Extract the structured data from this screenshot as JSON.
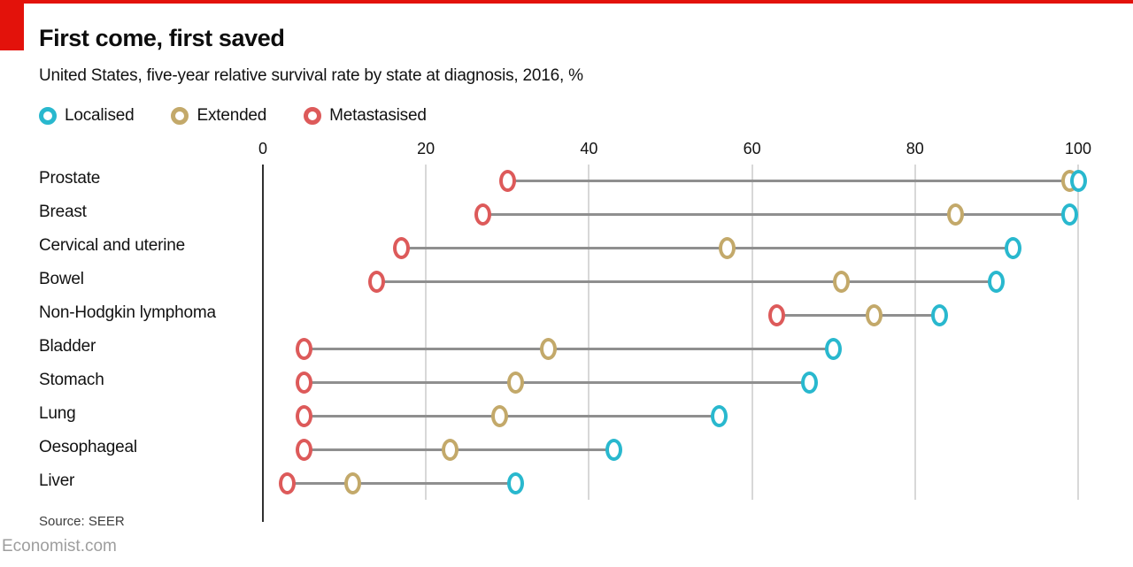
{
  "header": {
    "title": "First come, first saved",
    "subtitle": "United States, five-year relative survival rate by state at diagnosis, 2016, %"
  },
  "legend": [
    {
      "label": "Localised",
      "color": "#29b8ce"
    },
    {
      "label": "Extended",
      "color": "#c3a96a"
    },
    {
      "label": "Metastasised",
      "color": "#dd5a5a"
    }
  ],
  "chart_data": {
    "type": "scatter",
    "subtype": "dot-plot-dumbbell",
    "title": "First come, first saved",
    "subtitle": "United States, five-year relative survival rate by state at diagnosis, 2016, %",
    "categories": [
      "Prostate",
      "Breast",
      "Cervical and uterine",
      "Bowel",
      "Non-Hodgkin lymphoma",
      "Bladder",
      "Stomach",
      "Lung",
      "Oesophageal",
      "Liver"
    ],
    "series": [
      {
        "name": "Localised",
        "color": "#29b8ce",
        "values": [
          100,
          99,
          92,
          90,
          83,
          70,
          67,
          56,
          43,
          31
        ]
      },
      {
        "name": "Extended",
        "color": "#c3a96a",
        "values": [
          99,
          85,
          57,
          71,
          75,
          35,
          31,
          29,
          23,
          11
        ]
      },
      {
        "name": "Metastasised",
        "color": "#dd5a5a",
        "values": [
          30,
          27,
          17,
          14,
          63,
          5,
          5,
          5,
          5,
          3
        ]
      }
    ],
    "x_ticks": [
      0,
      20,
      40,
      60,
      80,
      100
    ],
    "xlim": [
      0,
      100
    ],
    "xlabel": "",
    "ylabel": "",
    "grid": true,
    "legend_position": "top-left"
  },
  "footer": {
    "source": "Source: SEER",
    "brand": "Economist.com"
  },
  "colors": {
    "accent_red": "#e3120b",
    "axis_line": "#2f2f2f",
    "gridline": "#d8d8d8",
    "connector": "#8f8f8f",
    "text_dark": "#121212",
    "brand_gray": "#9e9e9e"
  }
}
